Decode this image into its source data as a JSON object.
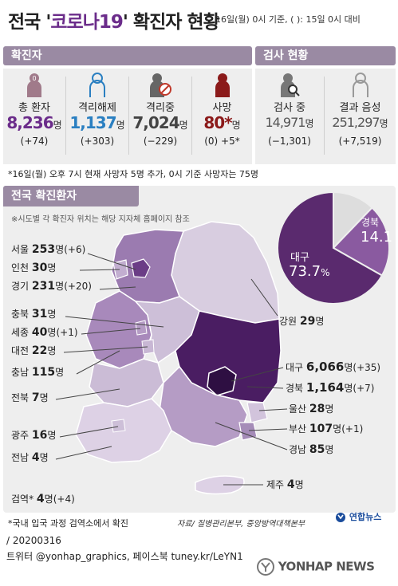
{
  "title": {
    "prefix": "전국 '",
    "highlight": "코로나19",
    "suffix": "' 확진자 현황"
  },
  "subtitle": "16일(월) 0시 기준, (  ): 15일 0시 대비",
  "confirmed_section": {
    "header": "확진자",
    "stats": [
      {
        "label": "총 환자",
        "value": "8,236",
        "unit": "명",
        "change": "(+74)",
        "color": "#6b2c8a",
        "icon": "person-zero-icon"
      },
      {
        "label": "격리해제",
        "value": "1,137",
        "unit": "명",
        "change": "(+303)",
        "color": "#2a7fc1",
        "icon": "person-outline-icon"
      },
      {
        "label": "격리중",
        "value": "7,024",
        "unit": "명",
        "change": "(−229)",
        "color": "#444444",
        "icon": "person-prohibited-icon"
      },
      {
        "label": "사망",
        "value": "80*",
        "unit": "명",
        "change": "(0) +5*",
        "color": "#8b1a1a",
        "icon": "person-dark-red-icon"
      }
    ]
  },
  "testing_section": {
    "header": "검사 현황",
    "stats": [
      {
        "label": "검사 중",
        "value": "14,971",
        "unit": "명",
        "change": "(−1,301)",
        "icon": "person-magnifier-icon"
      },
      {
        "label": "결과 음성",
        "value": "251,297",
        "unit": "명",
        "change": "(+7,519)",
        "icon": "person-outline-gray-icon"
      }
    ]
  },
  "death_note": "*16일(월) 오후 7시 현재 사망자 5명 추가, 0시 기준 사망자는 75명",
  "region_section": {
    "header": "전국 확진환자",
    "note": "※시도별 각 확진자 위치는 해당 지자체 홈페이지 참조"
  },
  "regions": [
    {
      "name": "서울",
      "count": "253",
      "unit": "명",
      "change": "(+6)"
    },
    {
      "name": "인천",
      "count": "30",
      "unit": "명",
      "change": ""
    },
    {
      "name": "경기",
      "count": "231",
      "unit": "명",
      "change": "(+20)"
    },
    {
      "name": "충북",
      "count": "31",
      "unit": "명",
      "change": ""
    },
    {
      "name": "세종",
      "count": "40",
      "unit": "명",
      "change": "(+1)"
    },
    {
      "name": "대전",
      "count": "22",
      "unit": "명",
      "change": ""
    },
    {
      "name": "충남",
      "count": "115",
      "unit": "명",
      "change": ""
    },
    {
      "name": "전북",
      "count": "7",
      "unit": "명",
      "change": ""
    },
    {
      "name": "광주",
      "count": "16",
      "unit": "명",
      "change": ""
    },
    {
      "name": "전남",
      "count": "4",
      "unit": "명",
      "change": ""
    },
    {
      "name": "검역*",
      "count": "4",
      "unit": "명",
      "change": "(+4)"
    },
    {
      "name": "강원",
      "count": "29",
      "unit": "명",
      "change": ""
    },
    {
      "name": "대구",
      "count": "6,066",
      "unit": "명",
      "change": "(+35)"
    },
    {
      "name": "경북",
      "count": "1,164",
      "unit": "명",
      "change": "(+7)"
    },
    {
      "name": "울산",
      "count": "28",
      "unit": "명",
      "change": ""
    },
    {
      "name": "부산",
      "count": "107",
      "unit": "명",
      "change": "(+1)"
    },
    {
      "name": "경남",
      "count": "85",
      "unit": "명",
      "change": ""
    },
    {
      "name": "제주",
      "count": "4",
      "unit": "명",
      "change": ""
    }
  ],
  "chart_data": {
    "type": "pie",
    "slices": [
      {
        "label": "대구",
        "value": 73.7,
        "color": "#5a2a6e"
      },
      {
        "label": "경북",
        "value": 14.1,
        "color": "#8a5aa0"
      },
      {
        "label": "",
        "value": 12.2,
        "color": "#dddddd"
      }
    ],
    "labels": {
      "daegu_name": "대구",
      "daegu_pct": "73.7",
      "gyeongbuk_name": "경북",
      "gyeongbuk_pct": "14.1",
      "pct_unit": "%"
    }
  },
  "footnote": "*국내 입국 과정 검역소에서 확진",
  "source": "자료/ 질병관리본부, 중앙방역대책본부",
  "logo": "연합뉴스",
  "date": "/ 20200316",
  "sns": "트위터 @yonhap_graphics, 페이스북 tuney.kr/LeYN1",
  "watermark": "YONHAP NEWS",
  "colors": {
    "header_bg": "#9a8aa3",
    "accent": "#6b2c8a",
    "panel_bg": "#eeeeee"
  }
}
